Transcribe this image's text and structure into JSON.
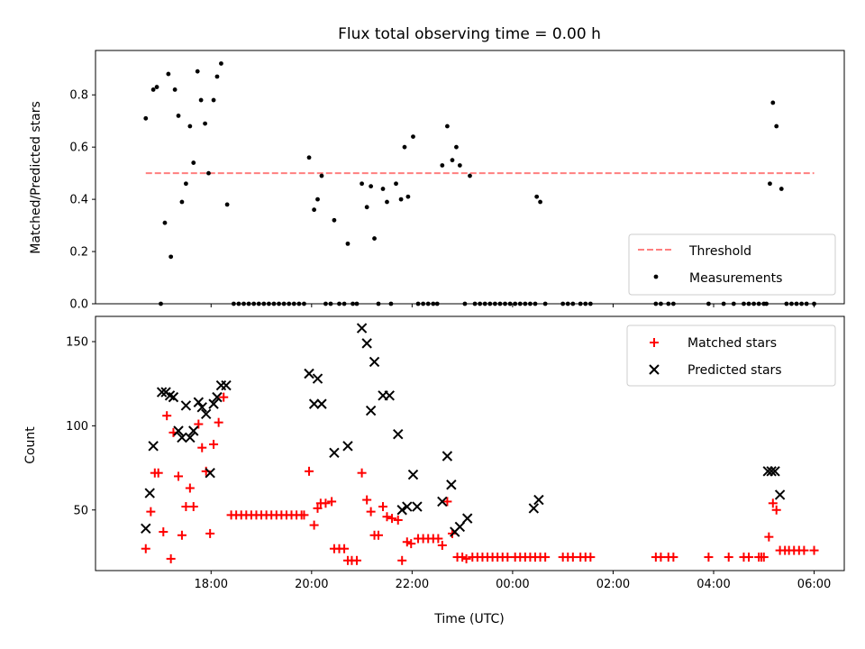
{
  "title": "Flux total observing time = 0.00 h",
  "chart_data": [
    {
      "type": "scatter",
      "ylabel": "Matched/Predicted stars",
      "xlabel": "",
      "ylim": [
        0,
        0.97
      ],
      "yticks": [
        0.0,
        0.2,
        0.4,
        0.6,
        0.8
      ],
      "ytick_labels": [
        "0.0",
        "0.2",
        "0.4",
        "0.6",
        "0.8"
      ],
      "legend": {
        "position": "lower-right",
        "threshold_label": "Threshold",
        "measurements_label": "Measurements"
      },
      "threshold": {
        "y": 0.5,
        "x_start": 16.7,
        "x_end": 30.0,
        "color": "#ff7f7f"
      },
      "measurements": [
        [
          16.7,
          0.71
        ],
        [
          16.85,
          0.82
        ],
        [
          16.92,
          0.83
        ],
        [
          17.0,
          0.0
        ],
        [
          17.08,
          0.31
        ],
        [
          17.15,
          0.88
        ],
        [
          17.2,
          0.18
        ],
        [
          17.28,
          0.82
        ],
        [
          17.35,
          0.72
        ],
        [
          17.42,
          0.39
        ],
        [
          17.5,
          0.46
        ],
        [
          17.58,
          0.68
        ],
        [
          17.65,
          0.54
        ],
        [
          17.73,
          0.89
        ],
        [
          17.8,
          0.78
        ],
        [
          17.88,
          0.69
        ],
        [
          17.95,
          0.5
        ],
        [
          18.05,
          0.78
        ],
        [
          18.12,
          0.87
        ],
        [
          18.2,
          0.92
        ],
        [
          18.32,
          0.38
        ],
        [
          18.45,
          0.0
        ],
        [
          18.55,
          0.0
        ],
        [
          18.65,
          0.0
        ],
        [
          18.75,
          0.0
        ],
        [
          18.85,
          0.0
        ],
        [
          18.95,
          0.0
        ],
        [
          19.05,
          0.0
        ],
        [
          19.15,
          0.0
        ],
        [
          19.25,
          0.0
        ],
        [
          19.35,
          0.0
        ],
        [
          19.45,
          0.0
        ],
        [
          19.55,
          0.0
        ],
        [
          19.65,
          0.0
        ],
        [
          19.75,
          0.0
        ],
        [
          19.85,
          0.0
        ],
        [
          19.95,
          0.56
        ],
        [
          20.05,
          0.36
        ],
        [
          20.12,
          0.4
        ],
        [
          20.2,
          0.49
        ],
        [
          20.28,
          0.0
        ],
        [
          20.38,
          0.0
        ],
        [
          20.45,
          0.32
        ],
        [
          20.55,
          0.0
        ],
        [
          20.65,
          0.0
        ],
        [
          20.72,
          0.23
        ],
        [
          20.82,
          0.0
        ],
        [
          20.9,
          0.0
        ],
        [
          21.0,
          0.46
        ],
        [
          21.1,
          0.37
        ],
        [
          21.18,
          0.45
        ],
        [
          21.25,
          0.25
        ],
        [
          21.33,
          0.0
        ],
        [
          21.42,
          0.44
        ],
        [
          21.5,
          0.39
        ],
        [
          21.58,
          0.0
        ],
        [
          21.68,
          0.46
        ],
        [
          21.78,
          0.4
        ],
        [
          21.85,
          0.6
        ],
        [
          21.92,
          0.41
        ],
        [
          22.02,
          0.64
        ],
        [
          22.12,
          0.0
        ],
        [
          22.22,
          0.0
        ],
        [
          22.32,
          0.0
        ],
        [
          22.42,
          0.0
        ],
        [
          22.5,
          0.0
        ],
        [
          22.6,
          0.53
        ],
        [
          22.7,
          0.68
        ],
        [
          22.8,
          0.55
        ],
        [
          22.88,
          0.6
        ],
        [
          22.95,
          0.53
        ],
        [
          23.05,
          0.0
        ],
        [
          23.15,
          0.49
        ],
        [
          23.25,
          0.0
        ],
        [
          23.35,
          0.0
        ],
        [
          23.45,
          0.0
        ],
        [
          23.55,
          0.0
        ],
        [
          23.65,
          0.0
        ],
        [
          23.75,
          0.0
        ],
        [
          23.85,
          0.0
        ],
        [
          23.95,
          0.0
        ],
        [
          24.05,
          0.0
        ],
        [
          24.15,
          0.0
        ],
        [
          24.25,
          0.0
        ],
        [
          24.35,
          0.0
        ],
        [
          24.45,
          0.0
        ],
        [
          24.48,
          0.41
        ],
        [
          24.55,
          0.39
        ],
        [
          24.65,
          0.0
        ],
        [
          25.0,
          0.0
        ],
        [
          25.1,
          0.0
        ],
        [
          25.2,
          0.0
        ],
        [
          25.35,
          0.0
        ],
        [
          25.45,
          0.0
        ],
        [
          25.55,
          0.0
        ],
        [
          26.85,
          0.0
        ],
        [
          26.95,
          0.0
        ],
        [
          27.1,
          0.0
        ],
        [
          27.2,
          0.0
        ],
        [
          27.9,
          0.0
        ],
        [
          28.2,
          0.0
        ],
        [
          28.4,
          0.0
        ],
        [
          28.6,
          0.0
        ],
        [
          28.7,
          0.0
        ],
        [
          28.8,
          0.0
        ],
        [
          28.9,
          0.0
        ],
        [
          29.0,
          0.0
        ],
        [
          29.05,
          0.0
        ],
        [
          29.12,
          0.46
        ],
        [
          29.18,
          0.77
        ],
        [
          29.25,
          0.68
        ],
        [
          29.35,
          0.44
        ],
        [
          29.45,
          0.0
        ],
        [
          29.55,
          0.0
        ],
        [
          29.65,
          0.0
        ],
        [
          29.75,
          0.0
        ],
        [
          29.85,
          0.0
        ],
        [
          30.0,
          0.0
        ]
      ]
    },
    {
      "type": "scatter",
      "ylabel": "Count",
      "xlabel": "Time (UTC)",
      "ylim": [
        14,
        165
      ],
      "yticks": [
        50,
        100,
        150
      ],
      "ytick_labels": [
        "50",
        "100",
        "150"
      ],
      "xlim": [
        15.7,
        30.6
      ],
      "xticks": [
        18,
        20,
        22,
        24,
        26,
        28,
        30
      ],
      "xtick_labels": [
        "18:00",
        "20:00",
        "22:00",
        "00:00",
        "02:00",
        "04:00",
        "06:00"
      ],
      "legend": {
        "position": "top-right",
        "matched_label": "Matched stars",
        "predicted_label": "Predicted stars"
      },
      "series": [
        {
          "name": "Matched stars",
          "marker": "plus",
          "color": "#ff0000",
          "points": [
            [
              16.7,
              27
            ],
            [
              16.8,
              49
            ],
            [
              16.88,
              72
            ],
            [
              16.95,
              72
            ],
            [
              17.05,
              37
            ],
            [
              17.12,
              106
            ],
            [
              17.2,
              21
            ],
            [
              17.25,
              96
            ],
            [
              17.35,
              70
            ],
            [
              17.42,
              35
            ],
            [
              17.5,
              52
            ],
            [
              17.58,
              63
            ],
            [
              17.65,
              52
            ],
            [
              17.75,
              101
            ],
            [
              17.82,
              87
            ],
            [
              17.9,
              73
            ],
            [
              17.98,
              36
            ],
            [
              18.05,
              89
            ],
            [
              18.15,
              102
            ],
            [
              18.25,
              117
            ],
            [
              18.4,
              47
            ],
            [
              18.5,
              47
            ],
            [
              18.6,
              47
            ],
            [
              18.7,
              47
            ],
            [
              18.8,
              47
            ],
            [
              18.9,
              47
            ],
            [
              19.0,
              47
            ],
            [
              19.1,
              47
            ],
            [
              19.2,
              47
            ],
            [
              19.3,
              47
            ],
            [
              19.4,
              47
            ],
            [
              19.5,
              47
            ],
            [
              19.6,
              47
            ],
            [
              19.7,
              47
            ],
            [
              19.8,
              47
            ],
            [
              19.85,
              47
            ],
            [
              19.95,
              73
            ],
            [
              20.05,
              41
            ],
            [
              20.12,
              51
            ],
            [
              20.18,
              54
            ],
            [
              20.28,
              54
            ],
            [
              20.4,
              55
            ],
            [
              20.45,
              27
            ],
            [
              20.55,
              27
            ],
            [
              20.65,
              27
            ],
            [
              20.72,
              20
            ],
            [
              20.8,
              20
            ],
            [
              20.9,
              20
            ],
            [
              21.0,
              72
            ],
            [
              21.1,
              56
            ],
            [
              21.18,
              49
            ],
            [
              21.25,
              35
            ],
            [
              21.33,
              35
            ],
            [
              21.42,
              52
            ],
            [
              21.5,
              46
            ],
            [
              21.6,
              45
            ],
            [
              21.72,
              44
            ],
            [
              21.8,
              20
            ],
            [
              21.9,
              31
            ],
            [
              21.98,
              30
            ],
            [
              22.12,
              33
            ],
            [
              22.22,
              33
            ],
            [
              22.32,
              33
            ],
            [
              22.42,
              33
            ],
            [
              22.52,
              33
            ],
            [
              22.6,
              29
            ],
            [
              22.7,
              55
            ],
            [
              22.8,
              36
            ],
            [
              22.9,
              22
            ],
            [
              23.0,
              22
            ],
            [
              23.08,
              21
            ],
            [
              23.2,
              22
            ],
            [
              23.3,
              22
            ],
            [
              23.4,
              22
            ],
            [
              23.5,
              22
            ],
            [
              23.6,
              22
            ],
            [
              23.7,
              22
            ],
            [
              23.8,
              22
            ],
            [
              23.9,
              22
            ],
            [
              24.05,
              22
            ],
            [
              24.15,
              22
            ],
            [
              24.25,
              22
            ],
            [
              24.35,
              22
            ],
            [
              24.45,
              22
            ],
            [
              24.55,
              22
            ],
            [
              24.65,
              22
            ],
            [
              25.0,
              22
            ],
            [
              25.1,
              22
            ],
            [
              25.2,
              22
            ],
            [
              25.35,
              22
            ],
            [
              25.45,
              22
            ],
            [
              25.55,
              22
            ],
            [
              26.85,
              22
            ],
            [
              26.95,
              22
            ],
            [
              27.1,
              22
            ],
            [
              27.2,
              22
            ],
            [
              27.9,
              22
            ],
            [
              28.3,
              22
            ],
            [
              28.6,
              22
            ],
            [
              28.7,
              22
            ],
            [
              28.9,
              22
            ],
            [
              28.95,
              22
            ],
            [
              29.0,
              22
            ],
            [
              29.1,
              34
            ],
            [
              29.18,
              54
            ],
            [
              29.25,
              50
            ],
            [
              29.32,
              26
            ],
            [
              29.42,
              26
            ],
            [
              29.5,
              26
            ],
            [
              29.6,
              26
            ],
            [
              29.7,
              26
            ],
            [
              29.8,
              26
            ],
            [
              30.0,
              26
            ]
          ]
        },
        {
          "name": "Predicted stars",
          "marker": "x",
          "color": "#000000",
          "points": [
            [
              16.7,
              39
            ],
            [
              16.78,
              60
            ],
            [
              16.85,
              88
            ],
            [
              17.02,
              120
            ],
            [
              17.1,
              120
            ],
            [
              17.18,
              118
            ],
            [
              17.25,
              117
            ],
            [
              17.35,
              97
            ],
            [
              17.42,
              93
            ],
            [
              17.5,
              112
            ],
            [
              17.58,
              93
            ],
            [
              17.65,
              97
            ],
            [
              17.75,
              114
            ],
            [
              17.82,
              111
            ],
            [
              17.9,
              107
            ],
            [
              17.98,
              72
            ],
            [
              18.05,
              113
            ],
            [
              18.12,
              117
            ],
            [
              18.2,
              124
            ],
            [
              18.3,
              124
            ],
            [
              19.95,
              131
            ],
            [
              20.05,
              113
            ],
            [
              20.12,
              128
            ],
            [
              20.2,
              113
            ],
            [
              20.45,
              84
            ],
            [
              20.72,
              88
            ],
            [
              21.0,
              158
            ],
            [
              21.1,
              149
            ],
            [
              21.18,
              109
            ],
            [
              21.25,
              138
            ],
            [
              21.42,
              118
            ],
            [
              21.55,
              118
            ],
            [
              21.72,
              95
            ],
            [
              21.8,
              50
            ],
            [
              21.9,
              52
            ],
            [
              22.02,
              71
            ],
            [
              22.1,
              52
            ],
            [
              22.6,
              55
            ],
            [
              22.7,
              82
            ],
            [
              22.78,
              65
            ],
            [
              22.85,
              37
            ],
            [
              22.95,
              40
            ],
            [
              23.1,
              45
            ],
            [
              24.42,
              51
            ],
            [
              24.52,
              56
            ],
            [
              29.08,
              73
            ],
            [
              29.15,
              73
            ],
            [
              29.22,
              73
            ],
            [
              29.32,
              59
            ]
          ]
        }
      ]
    }
  ]
}
